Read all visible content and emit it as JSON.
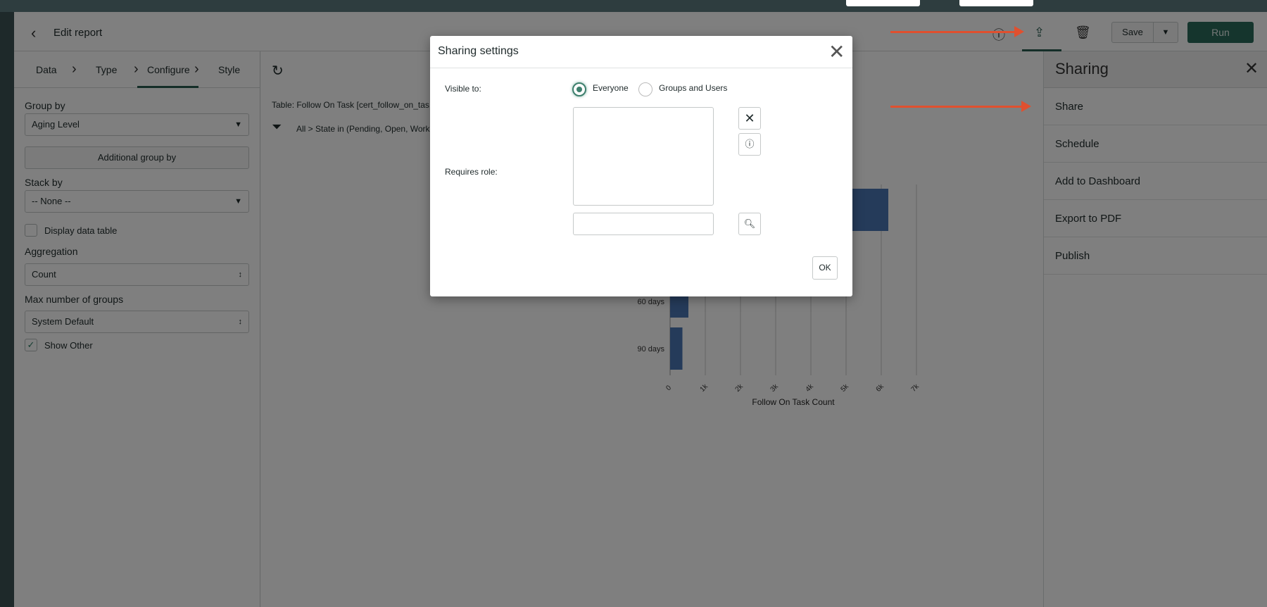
{
  "header": {
    "back_icon": "chevron-left-icon",
    "title": "Edit report",
    "save_label": "Save",
    "run_label": "Run"
  },
  "tabs": [
    {
      "label": "Data"
    },
    {
      "label": "Type"
    },
    {
      "label": "Configure",
      "active": true
    },
    {
      "label": "Style"
    }
  ],
  "config": {
    "group_by_label": "Group by",
    "group_by_value": "Aging Level",
    "additional_group_by": "Additional group by",
    "stack_by_label": "Stack by",
    "stack_by_value": "-- None --",
    "display_data_table": "Display data table",
    "display_data_table_checked": false,
    "aggregation_label": "Aggregation",
    "aggregation_value": "Count",
    "max_groups_label": "Max number of groups",
    "max_groups_value": "System Default",
    "show_other": "Show Other",
    "show_other_checked": true
  },
  "report": {
    "table": "Table: Follow On Task [cert_follow_on_tas",
    "condition": "All > State in (Pending, Open, Work"
  },
  "chart_data": {
    "type": "bar",
    "orientation": "horizontal",
    "categories": [
      "",
      "60 days",
      "90 days"
    ],
    "values": [
      6200,
      520,
      350
    ],
    "xlabel": "Follow On Task Count",
    "xlim": [
      0,
      7000
    ],
    "ticks": [
      "0",
      "1k",
      "2k",
      "3k",
      "4k",
      "5k",
      "6k",
      "7k"
    ],
    "bar_color": "#4a77b4",
    "grid": true
  },
  "sharing_panel": {
    "title": "Sharing",
    "items": [
      "Share",
      "Schedule",
      "Add to Dashboard",
      "Export to PDF",
      "Publish"
    ]
  },
  "dialog": {
    "title": "Sharing settings",
    "visible_to_label": "Visible to:",
    "options": [
      "Everyone",
      "Groups and Users"
    ],
    "selected": "Everyone",
    "requires_role_label": "Requires role:",
    "role_search_value": "",
    "ok_label": "OK"
  },
  "colors": {
    "accent": "#295c50",
    "run_button": "#2a6b5a",
    "annotation_arrow": "#e0502f",
    "topbar": "#2e3d3f"
  }
}
